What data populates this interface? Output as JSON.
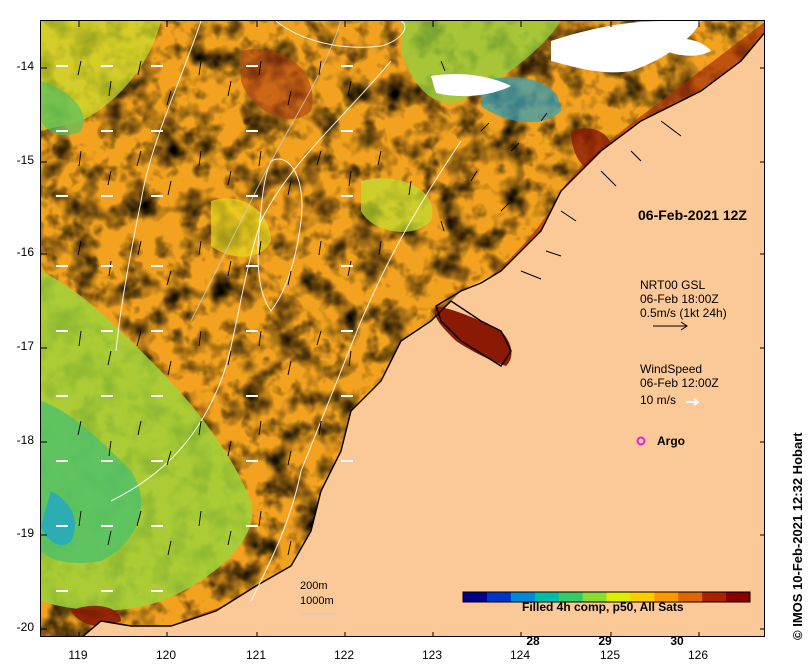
{
  "map": {
    "title": "06-Feb-2021 12Z",
    "credit": "IMOS 10-Feb-2021 12:32 Hobart",
    "credit_symbol": "©",
    "lat_ticks": [
      "-14",
      "-15",
      "-16",
      "-17",
      "-18",
      "-19",
      "-20"
    ],
    "lon_ticks": [
      "119",
      "120",
      "121",
      "122",
      "123",
      "124",
      "125",
      "126"
    ],
    "land_color": "#fbc898",
    "cloud_color": "#ffffff"
  },
  "legend": {
    "current": {
      "line1": "NRT00 GSL",
      "line2": "06-Feb 18:00Z",
      "line3": "0.5m/s (1kt 24h)"
    },
    "wind": {
      "line1": "WindSpeed",
      "line2": "06-Feb 12:00Z",
      "line3": "10 m/s"
    },
    "argo": {
      "label": "Argo",
      "color": "#dd22dd"
    },
    "contours": {
      "line1": "200m",
      "line2": "1000m"
    }
  },
  "colorbar": {
    "title": "Filled 4h comp, p50, All Sats",
    "ticks": [
      "28",
      "29",
      "30"
    ],
    "colors": [
      "#00008b",
      "#0033cc",
      "#0088dd",
      "#00bbaa",
      "#33cc66",
      "#88dd33",
      "#ddee00",
      "#ffcc00",
      "#ff9900",
      "#dd6600",
      "#aa2200",
      "#880000"
    ]
  }
}
